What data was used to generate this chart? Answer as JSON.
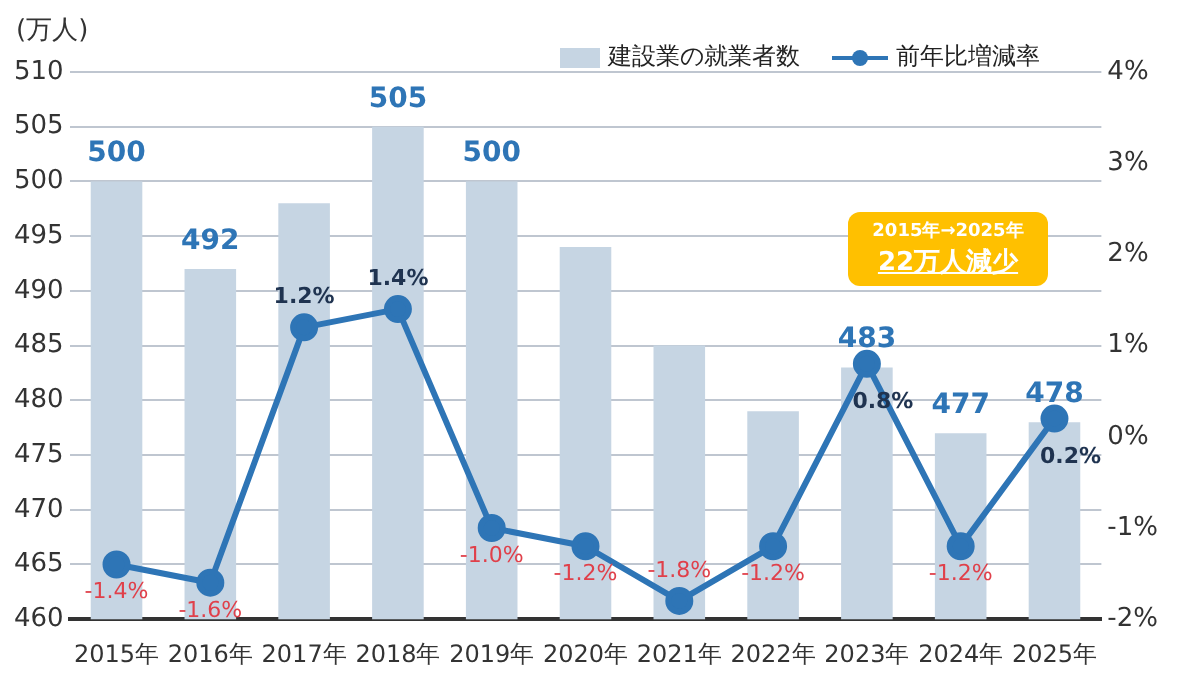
{
  "chart_data": {
    "type": "bar",
    "ylabel": "(万人)",
    "categories": [
      "2015年",
      "2016年",
      "2017年",
      "2018年",
      "2019年",
      "2020年",
      "2021年",
      "2022年",
      "2023年",
      "2024年",
      "2025年"
    ],
    "series": [
      {
        "name": "建設業の就業者数",
        "color": "#c6d5e3",
        "values": [
          500,
          492,
          498,
          505,
          500,
          494,
          485,
          479,
          483,
          477,
          478
        ],
        "value_labels": [
          "500",
          "492",
          null,
          "505",
          "500",
          null,
          null,
          null,
          "483",
          "477",
          "478"
        ]
      },
      {
        "name": "前年比増減率",
        "type": "line",
        "axis": "y2",
        "color": "#2e75b6",
        "values": [
          -1.4,
          -1.6,
          1.2,
          1.4,
          -1.0,
          -1.2,
          -1.8,
          -1.2,
          0.8,
          -1.2,
          0.2
        ],
        "value_labels": [
          "-1.4%",
          "-1.6%",
          "1.2%",
          "1.4%",
          "-1.0%",
          "-1.2%",
          "-1.8%",
          "-1.2%",
          "0.8%",
          "-1.2%",
          "0.2%"
        ]
      }
    ],
    "ylim": [
      460,
      510
    ],
    "yticks": [
      460,
      465,
      470,
      475,
      480,
      485,
      490,
      495,
      500,
      505,
      510
    ],
    "y2lim": [
      -2,
      4
    ],
    "y2ticks": [
      {
        "value": -2,
        "label": "-2%"
      },
      {
        "value": -1,
        "label": "-1%"
      },
      {
        "value": 0,
        "label": "0%"
      },
      {
        "value": 1,
        "label": "1%"
      },
      {
        "value": 2,
        "label": "2%"
      },
      {
        "value": 3,
        "label": "3%"
      },
      {
        "value": 4,
        "label": "4%"
      }
    ],
    "grid": "y",
    "legend": "top right",
    "marker": "circle",
    "line_style": "solid",
    "annotations": [
      "2015年→2025年",
      "22万人減少"
    ]
  }
}
